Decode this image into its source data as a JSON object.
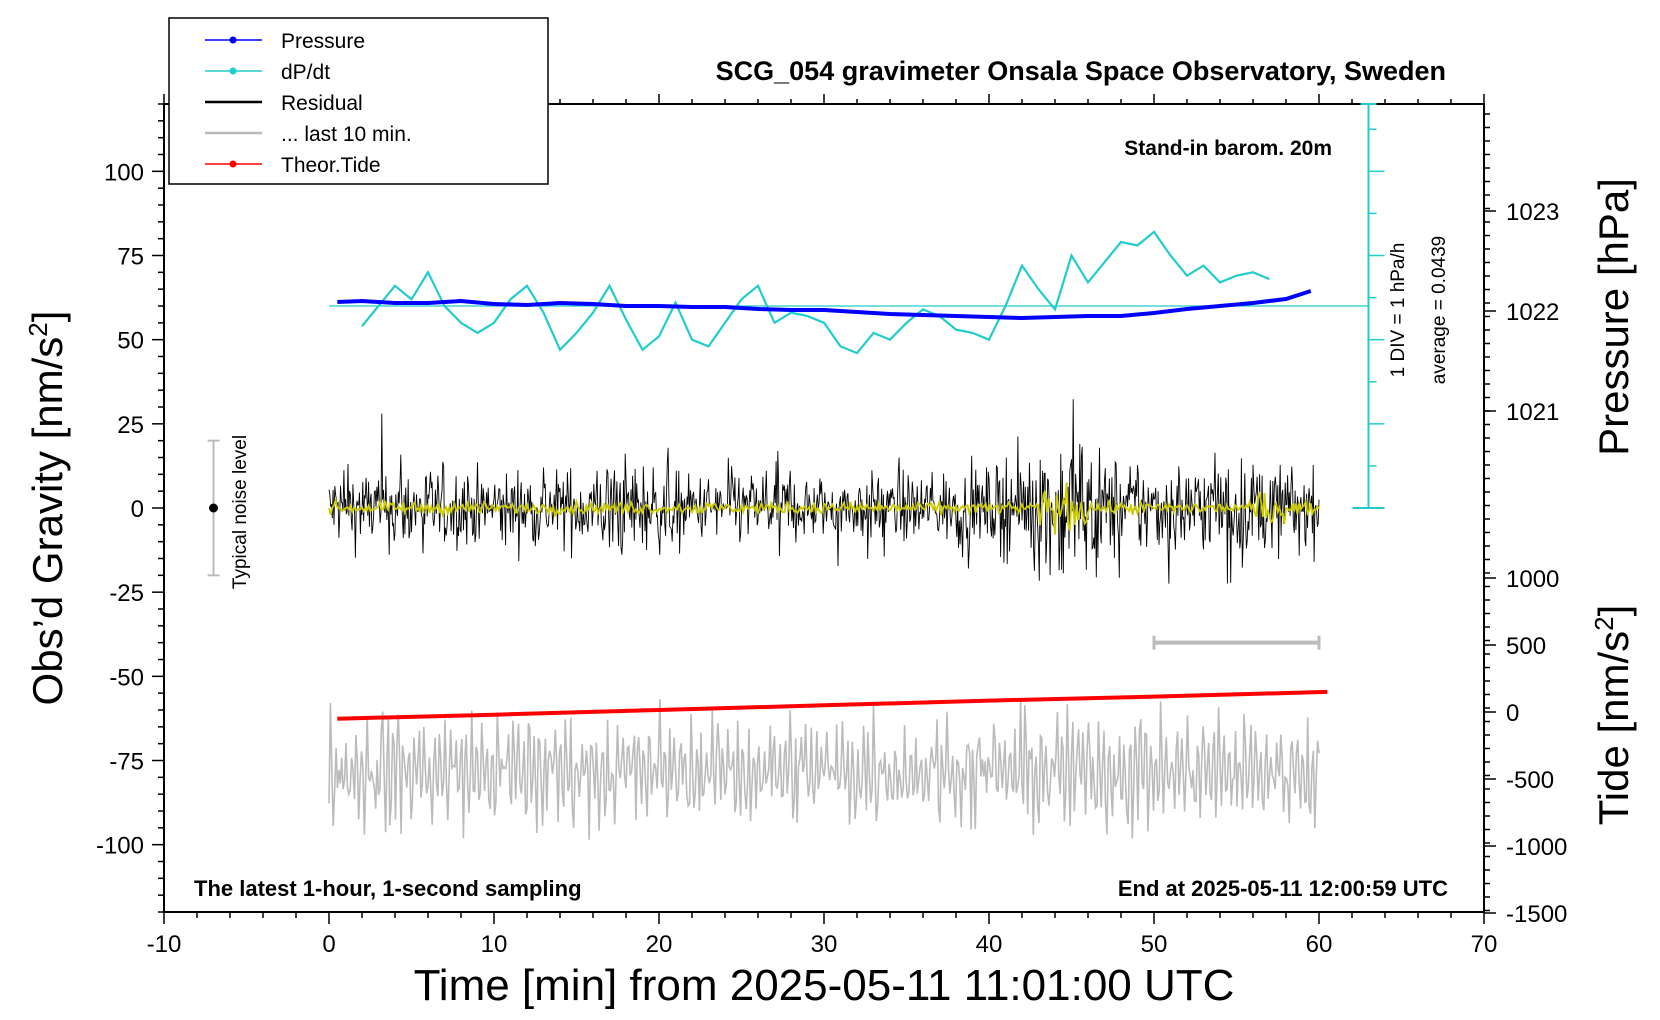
{
  "chart_data": {
    "type": "line",
    "title": "SCG_054 gravimeter Onsala Space Observatory, Sweden",
    "xlabel": "Time [min] from 2025-05-11 11:01:00 UTC",
    "ylabel_left_main": "Obs’d Gravity [nm/s",
    "ylabel_left_sup": "2",
    "ylabel_left_end": "]",
    "ylabel_right_top": "Pressure [hPa]",
    "ylabel_right_bottom_main": "Tide [nm/s",
    "ylabel_right_bottom_sup": "2",
    "ylabel_right_bottom_end": "]",
    "xlim": [
      -10,
      70
    ],
    "ylim_left": [
      -120,
      120
    ],
    "x_ticks": [
      -10,
      0,
      10,
      20,
      30,
      40,
      50,
      60,
      70
    ],
    "y_ticks_left": [
      -100,
      -75,
      -50,
      -25,
      0,
      25,
      50,
      75,
      100
    ],
    "pressure_axis": {
      "ylim": [
        1020.0,
        1024.0
      ],
      "ticks": [
        1021,
        1022,
        1023
      ]
    },
    "tide_axis": {
      "ylim": [
        -1500,
        1000
      ],
      "ticks": [
        -1500,
        -1000,
        -500,
        0,
        500,
        1000
      ]
    },
    "annotations": {
      "barometer": "Stand-in barom. 20m",
      "dpdt_div": "1 DIV = 1 hPa/h",
      "dpdt_average": "average = 0.0439",
      "noise": "Typical noise level",
      "bottom_left": "The latest 1-hour, 1-second sampling",
      "bottom_right": "End at 2025-05-11 12:00:59 UTC"
    },
    "noise_bar": {
      "x": -7,
      "center": 0,
      "half_range": 20
    },
    "last10_bar": {
      "x_start": 50,
      "x_end": 60,
      "y": -40
    },
    "legend": {
      "position": "top-left",
      "entries": [
        {
          "label": "Pressure",
          "color": "#0000ff",
          "marker": true
        },
        {
          "label": "dP/dt",
          "color": "#22cccc",
          "marker": true
        },
        {
          "label": "Residual",
          "color": "#000000",
          "marker": false
        },
        {
          "label": "... last 10 min.",
          "color": "#bbbbbb",
          "marker": false
        },
        {
          "label": "Theor.Tide",
          "color": "#ff0000",
          "marker": true
        }
      ]
    },
    "series": [
      {
        "name": "Pressure",
        "axis": "pressure",
        "color": "#0000ff",
        "x": [
          0.5,
          2,
          4,
          6,
          8,
          10,
          12,
          14,
          16,
          18,
          20,
          22,
          24,
          26,
          28,
          30,
          32,
          34,
          36,
          38,
          40,
          42,
          44,
          46,
          48,
          50,
          52,
          54,
          56,
          58,
          59.5
        ],
        "y": [
          1022.09,
          1022.1,
          1022.08,
          1022.08,
          1022.1,
          1022.07,
          1022.06,
          1022.08,
          1022.07,
          1022.05,
          1022.05,
          1022.04,
          1022.04,
          1022.02,
          1022.01,
          1022.01,
          1021.99,
          1021.97,
          1021.96,
          1021.95,
          1021.94,
          1021.93,
          1021.94,
          1021.95,
          1021.95,
          1021.98,
          1022.02,
          1022.05,
          1022.08,
          1022.12,
          1022.2
        ]
      },
      {
        "name": "dP/dt",
        "axis": "left",
        "color": "#22cccc",
        "x": [
          2,
          3,
          4,
          5,
          6,
          7,
          8,
          9,
          10,
          11,
          12,
          13,
          14,
          15,
          16,
          17,
          18,
          19,
          20,
          21,
          22,
          23,
          24,
          25,
          26,
          27,
          28,
          29,
          30,
          31,
          32,
          33,
          34,
          35,
          36,
          37,
          38,
          39,
          40,
          41,
          42,
          43,
          44,
          45,
          46,
          47,
          48,
          49,
          50,
          51,
          52,
          53,
          54,
          55,
          56,
          57
        ],
        "y": [
          54,
          60,
          66,
          62,
          70,
          60,
          55,
          52,
          55,
          62,
          66,
          58,
          47,
          52,
          58,
          66,
          56,
          47,
          51,
          61,
          50,
          48,
          55,
          62,
          66,
          55,
          58,
          57,
          55,
          48,
          46,
          52,
          50,
          55,
          59,
          57,
          53,
          52,
          50,
          60,
          72,
          65,
          59,
          75,
          67,
          73,
          79,
          78,
          82,
          75,
          69,
          72,
          67,
          69,
          70,
          68
        ]
      },
      {
        "name": "Theor.Tide",
        "axis": "tide",
        "color": "#ff0000",
        "x": [
          0.5,
          10,
          20,
          30,
          40,
          50,
          60.5
        ],
        "y": [
          -50,
          -20,
          15,
          50,
          85,
          115,
          150
        ]
      }
    ],
    "residual": {
      "name": "Residual",
      "color": "#000000",
      "x_range": [
        0,
        60
      ],
      "samples": 1200,
      "envelope": {
        "x": [
          0,
          5,
          10,
          15,
          18,
          22,
          26,
          30,
          35,
          40,
          43,
          45,
          47,
          50,
          55,
          60
        ],
        "amp": [
          14,
          16,
          14,
          15,
          20,
          12,
          14,
          12,
          13,
          14,
          24,
          30,
          20,
          17,
          18,
          15
        ]
      }
    },
    "residual_filtered": {
      "color": "#cccc00",
      "samples": 600,
      "amp": 2
    },
    "last_10_min": {
      "name": "... last 10 min.",
      "color": "#bbbbbb",
      "x_range": [
        0,
        60
      ],
      "samples": 700,
      "center": -78,
      "amp": 14
    }
  }
}
